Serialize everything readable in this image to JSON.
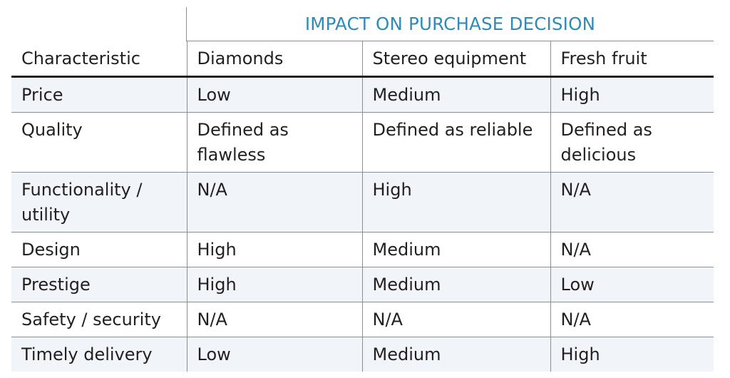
{
  "table": {
    "super_header": "IMPACT ON PURCHASE DECISION",
    "columns": [
      "Characteristic",
      "Diamonds",
      "Stereo equipment",
      "Fresh fruit"
    ],
    "rows": [
      [
        "Price",
        "Low",
        "Medium",
        "High"
      ],
      [
        "Quality",
        "Defined as flawless",
        "Defined as reliable",
        "Defined as delicious"
      ],
      [
        "Functionality / utility",
        "N/A",
        "High",
        "N/A"
      ],
      [
        "Design",
        "High",
        "Medium",
        "N/A"
      ],
      [
        "Prestige",
        "High",
        "Medium",
        "Low"
      ],
      [
        "Safety / security",
        "N/A",
        "N/A",
        "N/A"
      ],
      [
        "Timely delivery",
        "Low",
        "Medium",
        "High"
      ]
    ]
  },
  "colors": {
    "super_header": "#2e8bb8",
    "stripe": "#f1f4f8",
    "text": "#231f20"
  }
}
